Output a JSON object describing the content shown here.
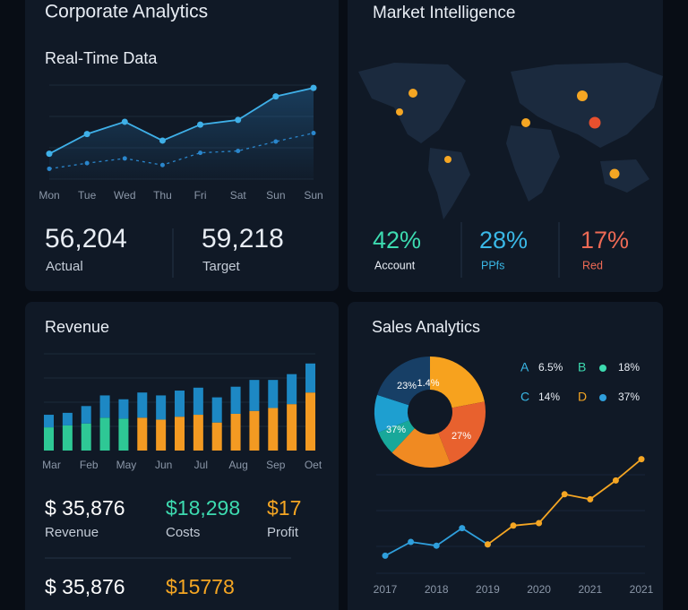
{
  "corporate": {
    "title": "Corporate Analytics",
    "subtitle": "Real-Time Data",
    "chart": {
      "type": "line",
      "categories": [
        "Mon",
        "Tue",
        "Wed",
        "Thu",
        "Fri",
        "Sat",
        "Sun",
        "Sun"
      ],
      "ylim": [
        0,
        100
      ],
      "series": [
        {
          "color": "#3fb0e8",
          "values": [
            27,
            48,
            61,
            41,
            58,
            63,
            88,
            97
          ]
        },
        {
          "color": "#2a86cc",
          "dashed": true,
          "values": [
            11,
            17,
            22,
            15,
            28,
            30,
            40,
            49
          ]
        }
      ]
    },
    "stats": [
      {
        "value": "56,204",
        "label": "Actual"
      },
      {
        "value": "59,218",
        "label": "Target"
      }
    ]
  },
  "market": {
    "title": "Market Intelligence",
    "stats": [
      {
        "value": "42%",
        "label": "Account",
        "color": "#3ddbb0",
        "label_color": "#e8edf4"
      },
      {
        "value": "28%",
        "label": "PPfs",
        "color": "#3ab8e6",
        "label_color": "#3ab8e6"
      },
      {
        "value": "17%",
        "label": "Red",
        "color": "#ee6a55",
        "label_color": "#ee6a55"
      }
    ]
  },
  "revenue": {
    "title": "Revenue",
    "chart": {
      "type": "bar",
      "stacked": true,
      "categories": [
        "Mar",
        null,
        "Feb",
        null,
        "May",
        null,
        "Jun",
        null,
        "Jul",
        null,
        "Aug",
        null,
        "Sep",
        null,
        "Oet"
      ],
      "ylim": [
        0,
        100
      ],
      "series": [
        {
          "color": "#2ec895",
          "values": [
            24,
            26,
            28,
            34,
            33,
            null,
            null,
            null,
            null,
            null,
            null,
            null,
            null,
            null,
            null
          ]
        },
        {
          "color": "#f39a22",
          "values": [
            null,
            null,
            null,
            null,
            null,
            34,
            32,
            35,
            37,
            29,
            38,
            41,
            44,
            48,
            60
          ]
        },
        {
          "color": "#1d88c4",
          "values": [
            13,
            13,
            18,
            23,
            20,
            26,
            25,
            27,
            28,
            26,
            28,
            32,
            29,
            31,
            30
          ]
        }
      ]
    },
    "stats": [
      {
        "value": "$ 35,876",
        "label": "Revenue",
        "color": "#ffffff"
      },
      {
        "value": "$18,298",
        "label": "Costs",
        "color": "#3ddbb0"
      },
      {
        "value": "$17",
        "label": "Profit",
        "color": "#f5a623"
      }
    ],
    "stats2": [
      {
        "value": "$ 35,876",
        "color": "#ffffff"
      },
      {
        "value": "$15778",
        "color": "#f5a623"
      }
    ]
  },
  "sales": {
    "title": "Sales Analytics",
    "pie": {
      "type": "pie",
      "values": [
        22,
        22,
        18,
        7,
        11,
        20
      ],
      "colors": [
        "#f7a21e",
        "#e8612e",
        "#f08a22",
        "#18a89a",
        "#1e9fd0",
        "#173f66"
      ],
      "annotations": [
        "1.4%",
        "27%",
        "37%",
        "23%"
      ]
    },
    "legend": [
      {
        "letter": "A",
        "value": "6.5%",
        "color": "#3ab8e6"
      },
      {
        "letter": "B",
        "value": "18%",
        "color": "#3ddbb0"
      },
      {
        "letter": "C",
        "value": "14%",
        "color": "#3ab8e6"
      },
      {
        "letter": "D",
        "value": "37%",
        "color": "#f5a623"
      }
    ],
    "chart": {
      "type": "line",
      "categories": [
        "2017",
        null,
        "2018",
        null,
        "2019",
        null,
        "2020",
        null,
        "2021",
        null,
        "2021"
      ],
      "ylim": [
        0,
        100
      ],
      "series": [
        {
          "color": "#2f9fdc",
          "values": [
            14,
            25,
            22,
            36,
            23,
            null,
            null,
            null,
            null,
            null,
            null
          ]
        },
        {
          "color": "#f5a623",
          "values": [
            null,
            null,
            null,
            null,
            23,
            38,
            40,
            63,
            59,
            74,
            91
          ]
        }
      ]
    }
  }
}
